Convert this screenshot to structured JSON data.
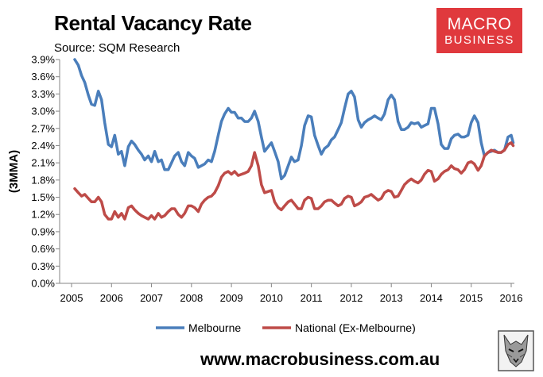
{
  "title": "Rental Vacancy Rate",
  "subtitle": "Source: SQM Research",
  "logo": {
    "line1": "MACRO",
    "line2": "BUSINESS",
    "color": "#e0393d"
  },
  "footer_url": "www.macrobusiness.com.au",
  "chart_data": {
    "type": "line",
    "ylabel": "(3MMA)",
    "xlabel": "",
    "ylim": [
      0,
      3.9
    ],
    "xlim": [
      2005,
      2016.05
    ],
    "y_ticks": [
      "0.0%",
      "0.3%",
      "0.6%",
      "0.9%",
      "1.2%",
      "1.5%",
      "1.8%",
      "2.1%",
      "2.4%",
      "2.7%",
      "3.0%",
      "3.3%",
      "3.6%",
      "3.9%"
    ],
    "x_ticks": [
      "2005",
      "2006",
      "2007",
      "2008",
      "2009",
      "2010",
      "2011",
      "2012",
      "2013",
      "2014",
      "2015",
      "2016"
    ],
    "grid": false,
    "legend": "bottom",
    "series": [
      {
        "name": "Melbourne",
        "color": "#4a7ebb",
        "points": [
          [
            2005.08,
            3.9
          ],
          [
            2005.17,
            3.8
          ],
          [
            2005.25,
            3.62
          ],
          [
            2005.33,
            3.5
          ],
          [
            2005.42,
            3.28
          ],
          [
            2005.5,
            3.12
          ],
          [
            2005.58,
            3.1
          ],
          [
            2005.67,
            3.35
          ],
          [
            2005.75,
            3.2
          ],
          [
            2005.83,
            2.8
          ],
          [
            2005.92,
            2.42
          ],
          [
            2006.0,
            2.38
          ],
          [
            2006.08,
            2.58
          ],
          [
            2006.17,
            2.25
          ],
          [
            2006.25,
            2.3
          ],
          [
            2006.33,
            2.05
          ],
          [
            2006.42,
            2.38
          ],
          [
            2006.5,
            2.48
          ],
          [
            2006.58,
            2.42
          ],
          [
            2006.67,
            2.32
          ],
          [
            2006.75,
            2.25
          ],
          [
            2006.83,
            2.15
          ],
          [
            2006.92,
            2.22
          ],
          [
            2007.0,
            2.12
          ],
          [
            2007.08,
            2.3
          ],
          [
            2007.17,
            2.12
          ],
          [
            2007.25,
            2.15
          ],
          [
            2007.33,
            1.98
          ],
          [
            2007.42,
            1.98
          ],
          [
            2007.5,
            2.1
          ],
          [
            2007.58,
            2.22
          ],
          [
            2007.67,
            2.28
          ],
          [
            2007.75,
            2.12
          ],
          [
            2007.83,
            2.05
          ],
          [
            2007.92,
            2.28
          ],
          [
            2008.0,
            2.22
          ],
          [
            2008.08,
            2.18
          ],
          [
            2008.17,
            2.02
          ],
          [
            2008.25,
            2.05
          ],
          [
            2008.33,
            2.08
          ],
          [
            2008.42,
            2.15
          ],
          [
            2008.5,
            2.12
          ],
          [
            2008.58,
            2.3
          ],
          [
            2008.67,
            2.58
          ],
          [
            2008.75,
            2.82
          ],
          [
            2008.83,
            2.95
          ],
          [
            2008.92,
            3.05
          ],
          [
            2009.0,
            2.98
          ],
          [
            2009.08,
            2.98
          ],
          [
            2009.17,
            2.88
          ],
          [
            2009.25,
            2.88
          ],
          [
            2009.33,
            2.82
          ],
          [
            2009.42,
            2.82
          ],
          [
            2009.5,
            2.88
          ],
          [
            2009.58,
            3.0
          ],
          [
            2009.67,
            2.82
          ],
          [
            2009.75,
            2.55
          ],
          [
            2009.83,
            2.3
          ],
          [
            2009.92,
            2.38
          ],
          [
            2010.0,
            2.45
          ],
          [
            2010.08,
            2.3
          ],
          [
            2010.17,
            2.12
          ],
          [
            2010.25,
            1.82
          ],
          [
            2010.33,
            1.88
          ],
          [
            2010.42,
            2.05
          ],
          [
            2010.5,
            2.2
          ],
          [
            2010.58,
            2.12
          ],
          [
            2010.67,
            2.15
          ],
          [
            2010.75,
            2.4
          ],
          [
            2010.83,
            2.75
          ],
          [
            2010.92,
            2.92
          ],
          [
            2011.0,
            2.9
          ],
          [
            2011.08,
            2.58
          ],
          [
            2011.17,
            2.4
          ],
          [
            2011.25,
            2.25
          ],
          [
            2011.33,
            2.35
          ],
          [
            2011.42,
            2.4
          ],
          [
            2011.5,
            2.5
          ],
          [
            2011.58,
            2.55
          ],
          [
            2011.67,
            2.68
          ],
          [
            2011.75,
            2.8
          ],
          [
            2011.83,
            3.05
          ],
          [
            2011.92,
            3.3
          ],
          [
            2012.0,
            3.35
          ],
          [
            2012.08,
            3.25
          ],
          [
            2012.17,
            2.85
          ],
          [
            2012.25,
            2.72
          ],
          [
            2012.33,
            2.8
          ],
          [
            2012.42,
            2.85
          ],
          [
            2012.5,
            2.88
          ],
          [
            2012.58,
            2.92
          ],
          [
            2012.67,
            2.88
          ],
          [
            2012.75,
            2.85
          ],
          [
            2012.83,
            2.95
          ],
          [
            2012.92,
            3.2
          ],
          [
            2013.0,
            3.28
          ],
          [
            2013.08,
            3.2
          ],
          [
            2013.17,
            2.82
          ],
          [
            2013.25,
            2.68
          ],
          [
            2013.33,
            2.68
          ],
          [
            2013.42,
            2.72
          ],
          [
            2013.5,
            2.8
          ],
          [
            2013.58,
            2.78
          ],
          [
            2013.67,
            2.8
          ],
          [
            2013.75,
            2.72
          ],
          [
            2013.83,
            2.75
          ],
          [
            2013.92,
            2.78
          ],
          [
            2014.0,
            3.05
          ],
          [
            2014.08,
            3.05
          ],
          [
            2014.17,
            2.78
          ],
          [
            2014.25,
            2.42
          ],
          [
            2014.33,
            2.35
          ],
          [
            2014.42,
            2.35
          ],
          [
            2014.5,
            2.52
          ],
          [
            2014.58,
            2.58
          ],
          [
            2014.67,
            2.6
          ],
          [
            2014.75,
            2.55
          ],
          [
            2014.83,
            2.55
          ],
          [
            2014.92,
            2.58
          ],
          [
            2015.0,
            2.8
          ],
          [
            2015.08,
            2.92
          ],
          [
            2015.17,
            2.8
          ],
          [
            2015.25,
            2.45
          ],
          [
            2015.33,
            2.22
          ],
          [
            2015.42,
            2.28
          ],
          [
            2015.5,
            2.3
          ],
          [
            2015.58,
            2.32
          ],
          [
            2015.67,
            2.28
          ],
          [
            2015.75,
            2.28
          ],
          [
            2015.83,
            2.32
          ],
          [
            2015.92,
            2.55
          ],
          [
            2016.0,
            2.58
          ],
          [
            2016.05,
            2.45
          ]
        ]
      },
      {
        "name": "National (Ex-Melbourne)",
        "color": "#be4b48",
        "points": [
          [
            2005.08,
            1.65
          ],
          [
            2005.17,
            1.58
          ],
          [
            2005.25,
            1.52
          ],
          [
            2005.33,
            1.55
          ],
          [
            2005.42,
            1.48
          ],
          [
            2005.5,
            1.42
          ],
          [
            2005.58,
            1.42
          ],
          [
            2005.67,
            1.5
          ],
          [
            2005.75,
            1.42
          ],
          [
            2005.83,
            1.2
          ],
          [
            2005.92,
            1.12
          ],
          [
            2006.0,
            1.12
          ],
          [
            2006.08,
            1.25
          ],
          [
            2006.17,
            1.15
          ],
          [
            2006.25,
            1.22
          ],
          [
            2006.33,
            1.12
          ],
          [
            2006.42,
            1.32
          ],
          [
            2006.5,
            1.35
          ],
          [
            2006.58,
            1.28
          ],
          [
            2006.67,
            1.22
          ],
          [
            2006.75,
            1.18
          ],
          [
            2006.83,
            1.15
          ],
          [
            2006.92,
            1.12
          ],
          [
            2007.0,
            1.18
          ],
          [
            2007.08,
            1.12
          ],
          [
            2007.17,
            1.22
          ],
          [
            2007.25,
            1.15
          ],
          [
            2007.33,
            1.18
          ],
          [
            2007.42,
            1.25
          ],
          [
            2007.5,
            1.3
          ],
          [
            2007.58,
            1.3
          ],
          [
            2007.67,
            1.2
          ],
          [
            2007.75,
            1.15
          ],
          [
            2007.83,
            1.22
          ],
          [
            2007.92,
            1.35
          ],
          [
            2008.0,
            1.35
          ],
          [
            2008.08,
            1.32
          ],
          [
            2008.17,
            1.25
          ],
          [
            2008.25,
            1.38
          ],
          [
            2008.33,
            1.45
          ],
          [
            2008.42,
            1.5
          ],
          [
            2008.5,
            1.52
          ],
          [
            2008.58,
            1.58
          ],
          [
            2008.67,
            1.7
          ],
          [
            2008.75,
            1.85
          ],
          [
            2008.83,
            1.92
          ],
          [
            2008.92,
            1.95
          ],
          [
            2009.0,
            1.9
          ],
          [
            2009.08,
            1.95
          ],
          [
            2009.17,
            1.88
          ],
          [
            2009.25,
            1.9
          ],
          [
            2009.33,
            1.92
          ],
          [
            2009.42,
            1.95
          ],
          [
            2009.5,
            2.05
          ],
          [
            2009.58,
            2.28
          ],
          [
            2009.67,
            2.05
          ],
          [
            2009.75,
            1.72
          ],
          [
            2009.83,
            1.58
          ],
          [
            2009.92,
            1.6
          ],
          [
            2010.0,
            1.62
          ],
          [
            2010.08,
            1.42
          ],
          [
            2010.17,
            1.32
          ],
          [
            2010.25,
            1.28
          ],
          [
            2010.33,
            1.35
          ],
          [
            2010.42,
            1.42
          ],
          [
            2010.5,
            1.45
          ],
          [
            2010.58,
            1.38
          ],
          [
            2010.67,
            1.3
          ],
          [
            2010.75,
            1.3
          ],
          [
            2010.83,
            1.45
          ],
          [
            2010.92,
            1.5
          ],
          [
            2011.0,
            1.48
          ],
          [
            2011.08,
            1.3
          ],
          [
            2011.17,
            1.3
          ],
          [
            2011.25,
            1.35
          ],
          [
            2011.33,
            1.42
          ],
          [
            2011.42,
            1.45
          ],
          [
            2011.5,
            1.45
          ],
          [
            2011.58,
            1.4
          ],
          [
            2011.67,
            1.35
          ],
          [
            2011.75,
            1.38
          ],
          [
            2011.83,
            1.48
          ],
          [
            2011.92,
            1.52
          ],
          [
            2012.0,
            1.5
          ],
          [
            2012.08,
            1.35
          ],
          [
            2012.17,
            1.38
          ],
          [
            2012.25,
            1.42
          ],
          [
            2012.33,
            1.5
          ],
          [
            2012.42,
            1.52
          ],
          [
            2012.5,
            1.55
          ],
          [
            2012.58,
            1.5
          ],
          [
            2012.67,
            1.45
          ],
          [
            2012.75,
            1.48
          ],
          [
            2012.83,
            1.58
          ],
          [
            2012.92,
            1.62
          ],
          [
            2013.0,
            1.6
          ],
          [
            2013.08,
            1.5
          ],
          [
            2013.17,
            1.52
          ],
          [
            2013.25,
            1.62
          ],
          [
            2013.33,
            1.72
          ],
          [
            2013.42,
            1.78
          ],
          [
            2013.5,
            1.82
          ],
          [
            2013.58,
            1.78
          ],
          [
            2013.67,
            1.75
          ],
          [
            2013.75,
            1.8
          ],
          [
            2013.83,
            1.9
          ],
          [
            2013.92,
            1.97
          ],
          [
            2014.0,
            1.95
          ],
          [
            2014.08,
            1.78
          ],
          [
            2014.17,
            1.82
          ],
          [
            2014.25,
            1.9
          ],
          [
            2014.33,
            1.95
          ],
          [
            2014.42,
            1.98
          ],
          [
            2014.5,
            2.05
          ],
          [
            2014.58,
            2.0
          ],
          [
            2014.67,
            1.98
          ],
          [
            2014.75,
            1.92
          ],
          [
            2014.83,
            1.98
          ],
          [
            2014.92,
            2.1
          ],
          [
            2015.0,
            2.12
          ],
          [
            2015.08,
            2.08
          ],
          [
            2015.17,
            1.97
          ],
          [
            2015.25,
            2.05
          ],
          [
            2015.33,
            2.22
          ],
          [
            2015.42,
            2.28
          ],
          [
            2015.5,
            2.32
          ],
          [
            2015.58,
            2.3
          ],
          [
            2015.67,
            2.28
          ],
          [
            2015.75,
            2.28
          ],
          [
            2015.83,
            2.32
          ],
          [
            2015.92,
            2.42
          ],
          [
            2016.0,
            2.45
          ],
          [
            2016.05,
            2.4
          ]
        ]
      }
    ]
  }
}
